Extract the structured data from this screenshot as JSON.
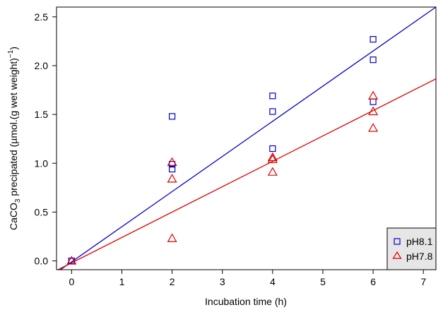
{
  "chart_data": {
    "type": "scatter",
    "xlabel": "Incubation time (h)",
    "ylabel_parts": {
      "pre": "CaCO",
      "sub": "3",
      "mid": " precipated (µmol.(g wet weight)",
      "sup": "−1",
      "post": ")"
    },
    "xlim": [
      -0.3,
      7.25
    ],
    "ylim": [
      -0.09,
      2.6
    ],
    "xticks": [
      0,
      1,
      2,
      3,
      4,
      5,
      6,
      7
    ],
    "yticks": [
      0.0,
      0.5,
      1.0,
      1.5,
      2.0,
      2.5
    ],
    "ytick_labels": [
      "0.0",
      "0.5",
      "1.0",
      "1.5",
      "2.0",
      "2.5"
    ],
    "grid": false,
    "legend_position": "bottom-right",
    "series": [
      {
        "name": "pH8.1",
        "marker": "square",
        "color": "#0000cc",
        "points": [
          [
            0,
            0.0
          ],
          [
            0,
            0.0
          ],
          [
            2,
            1.48
          ],
          [
            2,
            0.99
          ],
          [
            2,
            0.94
          ],
          [
            4,
            1.69
          ],
          [
            4,
            1.53
          ],
          [
            4,
            1.15
          ],
          [
            6,
            2.27
          ],
          [
            6,
            2.06
          ],
          [
            6,
            1.63
          ]
        ],
        "fit": {
          "slope": 0.36,
          "intercept": -0.01
        }
      },
      {
        "name": "pH7.8",
        "marker": "triangle",
        "color": "#dd0000",
        "points": [
          [
            0,
            0.0
          ],
          [
            2,
            1.01
          ],
          [
            2,
            0.84
          ],
          [
            2,
            0.23
          ],
          [
            4,
            1.06
          ],
          [
            4,
            1.04
          ],
          [
            4,
            0.91
          ],
          [
            6,
            1.69
          ],
          [
            6,
            1.53
          ],
          [
            6,
            1.36
          ]
        ],
        "fit": {
          "slope": 0.26,
          "intercept": -0.02
        }
      }
    ]
  }
}
